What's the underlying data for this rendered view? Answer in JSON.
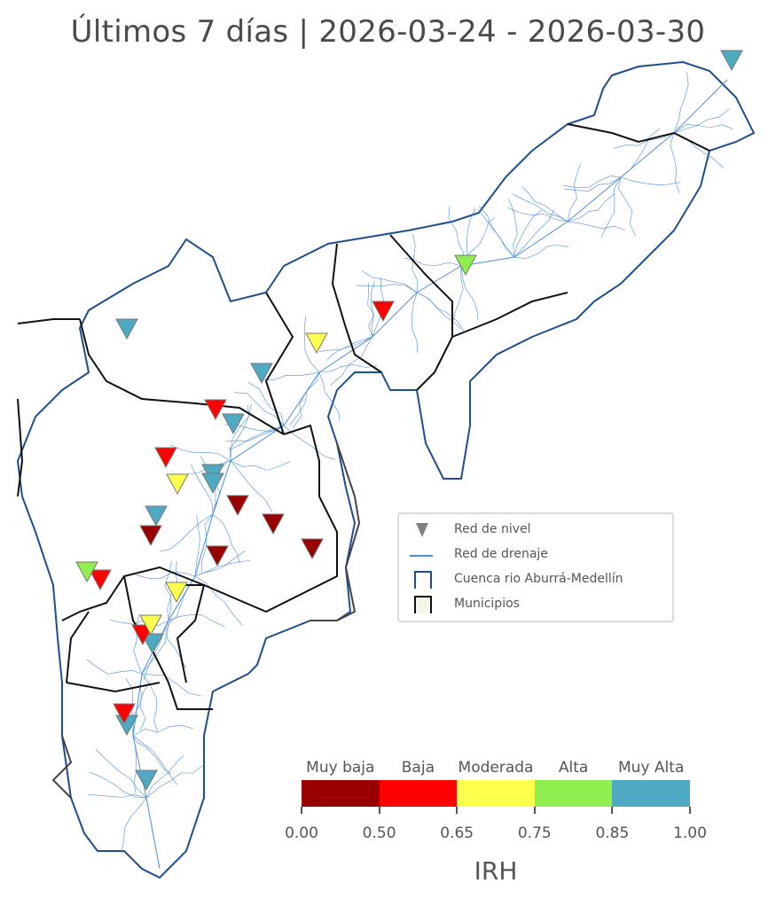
{
  "title": "Últimos 7 días | 2026-03-24 - 2026-03-30",
  "legend": {
    "items": [
      {
        "label": "Red de nivel",
        "symbol": "triangle-down",
        "color": "#808080"
      },
      {
        "label": "Red de drenaje",
        "symbol": "line",
        "color": "#4a90d9"
      },
      {
        "label": "Cuenca rio Aburrá-Medellín",
        "symbol": "square-outline",
        "color": "#1f4e8c"
      },
      {
        "label": "Municipios",
        "symbol": "square-filled",
        "color": "#111111"
      }
    ]
  },
  "colorbar": {
    "title": "IRH",
    "categories": [
      {
        "label": "Muy baja",
        "from": 0.0,
        "to": 0.5,
        "color": "#990000"
      },
      {
        "label": "Baja",
        "from": 0.5,
        "to": 0.65,
        "color": "#ff0000"
      },
      {
        "label": "Moderada",
        "from": 0.65,
        "to": 0.75,
        "color": "#ffff4d"
      },
      {
        "label": "Alta",
        "from": 0.75,
        "to": 0.85,
        "color": "#90ee4f"
      },
      {
        "label": "Muy Alta",
        "from": 0.85,
        "to": 1.0,
        "color": "#4ea9c3"
      }
    ],
    "ticks": [
      "0.00",
      "0.50",
      "0.65",
      "0.75",
      "0.85",
      "1.00"
    ]
  },
  "stations_by_category": {
    "Muy baja": 5,
    "Baja": 6,
    "Moderada": 4,
    "Alta": 2,
    "Muy Alta": 10
  }
}
